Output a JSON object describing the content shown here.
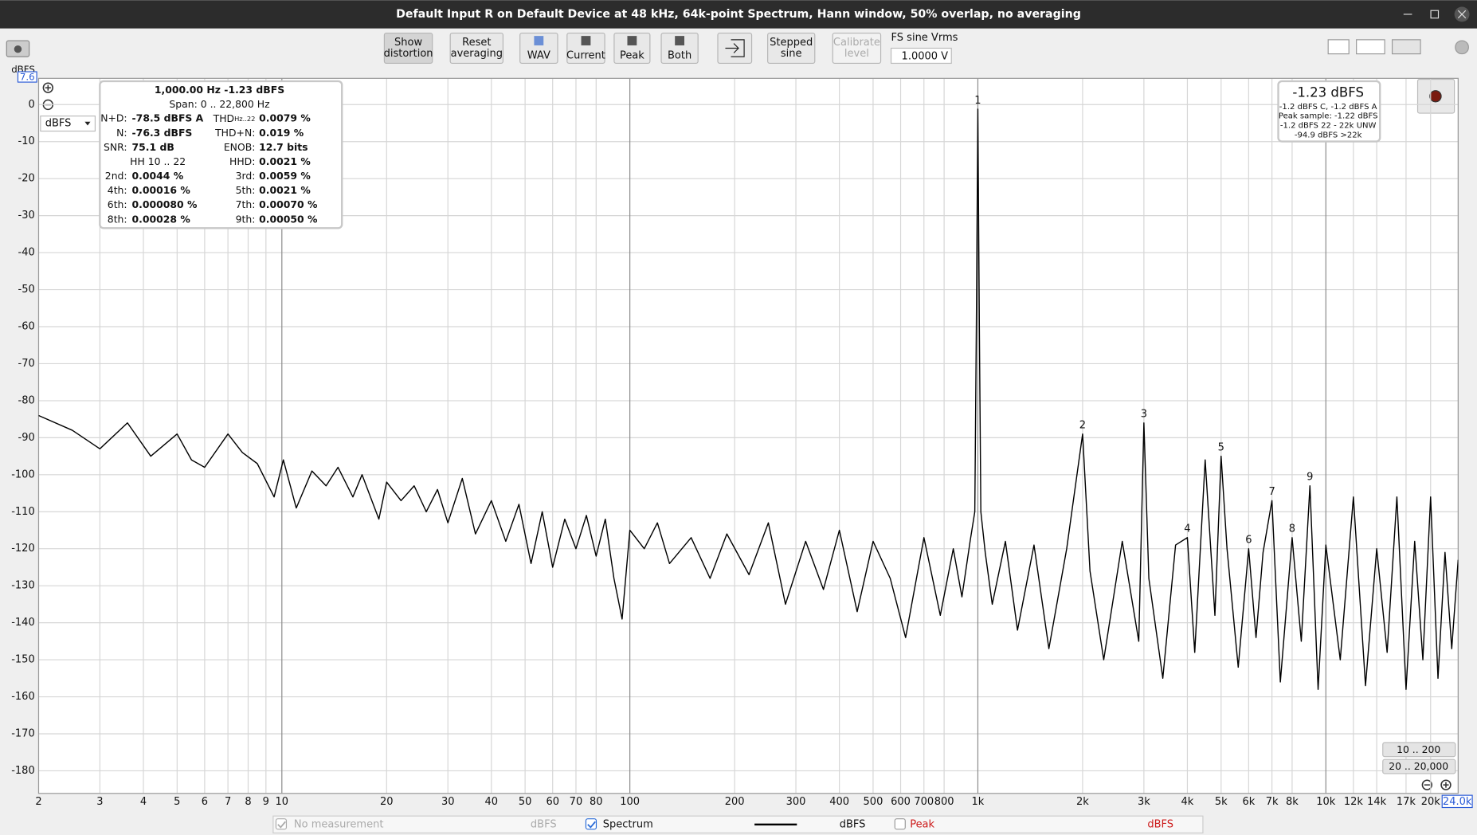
{
  "window": {
    "title": "Default Input R on Default Device at 48 kHz, 64k-point Spectrum, Hann window, 50% overlap, no averaging"
  },
  "toolbar": [
    {
      "lines": [
        "Show",
        "distortion"
      ]
    },
    {
      "lines": [
        "Reset",
        "averaging"
      ]
    },
    {
      "lines": [
        "WAV"
      ]
    },
    {
      "lines": [
        "Current"
      ]
    },
    {
      "lines": [
        "Peak"
      ]
    },
    {
      "lines": [
        "Both"
      ]
    },
    {
      "lines": [
        "Stepped",
        "sine"
      ]
    },
    {
      "lines": [
        "Calibrate",
        "level"
      ]
    }
  ],
  "fs_sine": {
    "label": "FS sine Vrms",
    "value": "1.0000 V"
  },
  "unit_select": "dBFS",
  "distortion_panel": {
    "header": "1,000.00 Hz  -1.23 dBFS",
    "span": "Span: 0 .. 22,800 Hz",
    "rows": [
      [
        {
          "label": "N+D:",
          "value": "-78.5 dBFS A"
        },
        {
          "label": "THD",
          "sub": "Hz..22",
          "value": "0.0079 %"
        }
      ],
      [
        {
          "label": "N:",
          "value": "-76.3 dBFS"
        },
        {
          "label": "THD+N:",
          "value": "0.019 %"
        }
      ],
      [
        {
          "label": "SNR:",
          "value": "75.1 dB"
        },
        {
          "label": "ENOB:",
          "value": "12.7 bits"
        }
      ],
      [
        {
          "label": "HH 10 .. 22"
        },
        {
          "label": "HHD:",
          "value": "0.0021 %"
        }
      ],
      [
        {
          "label": "2nd:",
          "value": "0.0044 %"
        },
        {
          "label": "3rd:",
          "value": "0.0059 %"
        }
      ],
      [
        {
          "label": "4th:",
          "value": "0.00016 %"
        },
        {
          "label": "5th:",
          "value": "0.0021 %"
        }
      ],
      [
        {
          "label": "6th:",
          "value": "0.000080 %"
        },
        {
          "label": "7th:",
          "value": "0.00070 %"
        }
      ],
      [
        {
          "label": "8th:",
          "value": "0.00028 %"
        },
        {
          "label": "9th:",
          "value": "0.00050 %"
        }
      ]
    ]
  },
  "level_panel": {
    "value": "-1.23 dBFS",
    "lines": [
      "-1.2 dBFS C, -1.2 dBFS A",
      "Peak sample: -1.22 dBFS",
      "-1.2 dBFS 22 - 22k UNW",
      "-94.9 dBFS >22k"
    ]
  },
  "range_buttons": [
    "10 .. 200",
    "20 .. 20,000"
  ],
  "legend_bar": {
    "no_measurement": "No measurement",
    "no_measurement_unit": "dBFS",
    "spectrum_unit": "dBFS",
    "peak": "Peak",
    "peak_unit": "dBFS"
  },
  "chart_data": {
    "type": "line",
    "y_unit": "dBFS",
    "log_x": true,
    "grid": true,
    "xlim": [
      2,
      24000
    ],
    "ylim": [
      -186.1,
      7.6
    ],
    "yticks": [
      0,
      -10,
      -20,
      -30,
      -40,
      -50,
      -60,
      -70,
      -80,
      -90,
      -100,
      -110,
      -120,
      -130,
      -140,
      -150,
      -160,
      -170,
      -180
    ],
    "xticks": [
      2,
      3,
      4,
      5,
      6,
      7,
      8,
      9,
      10,
      20,
      30,
      40,
      50,
      60,
      70,
      80,
      100,
      200,
      300,
      400,
      500,
      600,
      700,
      800,
      {
        "value": 1000,
        "label": "1k"
      },
      {
        "value": 2000,
        "label": "2k"
      },
      {
        "value": 3000,
        "label": "3k"
      },
      {
        "value": 4000,
        "label": "4k"
      },
      {
        "value": 5000,
        "label": "5k"
      },
      {
        "value": 6000,
        "label": "6k"
      },
      {
        "value": 7000,
        "label": "7k"
      },
      {
        "value": 8000,
        "label": "8k"
      },
      {
        "value": 10000,
        "label": "10k"
      },
      {
        "value": 12000,
        "label": "12k"
      },
      {
        "value": 14000,
        "label": "14k"
      },
      {
        "value": 17000,
        "label": "17k"
      },
      {
        "value": 20000,
        "label": "20k"
      },
      {
        "value": 24000,
        "label": "24.0k"
      }
    ],
    "series": [
      {
        "name": "Spectrum",
        "color": "#000000",
        "x": [
          2,
          2.5,
          3,
          3.6,
          4.2,
          5,
          5.5,
          6,
          7,
          7.7,
          8.5,
          9.5,
          10.1,
          11,
          12.2,
          13.4,
          14.5,
          16,
          17,
          19,
          20,
          22,
          24,
          26,
          28,
          30,
          33,
          36,
          40,
          44,
          48,
          52,
          56,
          60,
          65,
          70,
          75,
          80,
          85,
          90,
          95,
          100,
          110,
          120,
          130,
          150,
          170,
          190,
          220,
          250,
          280,
          320,
          360,
          400,
          450,
          500,
          560,
          620,
          700,
          780,
          850,
          900,
          950,
          980,
          990,
          1000,
          1010,
          1020,
          1050,
          1100,
          1200,
          1300,
          1450,
          1600,
          1800,
          2000,
          2100,
          2300,
          2600,
          2900,
          3000,
          3100,
          3400,
          3700,
          4000,
          4200,
          4500,
          4800,
          5000,
          5200,
          5600,
          6000,
          6300,
          6600,
          7000,
          7400,
          8000,
          8500,
          9000,
          9500,
          10000,
          11000,
          12000,
          13000,
          14000,
          15000,
          16000,
          17000,
          18000,
          19000,
          20000,
          21000,
          22000,
          23000,
          24000
        ],
        "values": [
          -84,
          -88,
          -93,
          -86,
          -95,
          -89,
          -96,
          -98,
          -89,
          -94,
          -97,
          -106,
          -96,
          -109,
          -99,
          -103,
          -98,
          -106,
          -100,
          -112,
          -102,
          -107,
          -103,
          -110,
          -104,
          -113,
          -101,
          -116,
          -107,
          -118,
          -108,
          -124,
          -110,
          -125,
          -112,
          -120,
          -111,
          -122,
          -112,
          -128,
          -139,
          -115,
          -120,
          -113,
          -124,
          -117,
          -128,
          -116,
          -127,
          -113,
          -135,
          -118,
          -131,
          -115,
          -137,
          -118,
          -128,
          -144,
          -117,
          -138,
          -120,
          -133,
          -118,
          -110,
          -60,
          -1.23,
          -60,
          -110,
          -121,
          -135,
          -118,
          -142,
          -119,
          -147,
          -120,
          -89,
          -126,
          -150,
          -118,
          -145,
          -86,
          -128,
          -155,
          -119,
          -117,
          -148,
          -96,
          -138,
          -95,
          -120,
          -152,
          -120,
          -144,
          -121,
          -107,
          -156,
          -117,
          -145,
          -103,
          -158,
          -119,
          -150,
          -106,
          -157,
          -120,
          -148,
          -106,
          -158,
          -118,
          -150,
          -106,
          -155,
          -121,
          -147,
          -123
        ]
      }
    ],
    "annotations": [
      {
        "label": "1",
        "x": 1000
      },
      {
        "label": "2",
        "x": 2000
      },
      {
        "label": "3",
        "x": 3000
      },
      {
        "label": "4",
        "x": 4000
      },
      {
        "label": "5",
        "x": 5000
      },
      {
        "label": "6",
        "x": 6000
      },
      {
        "label": "7",
        "x": 7000
      },
      {
        "label": "8",
        "x": 8000
      },
      {
        "label": "9",
        "x": 9000
      }
    ]
  }
}
